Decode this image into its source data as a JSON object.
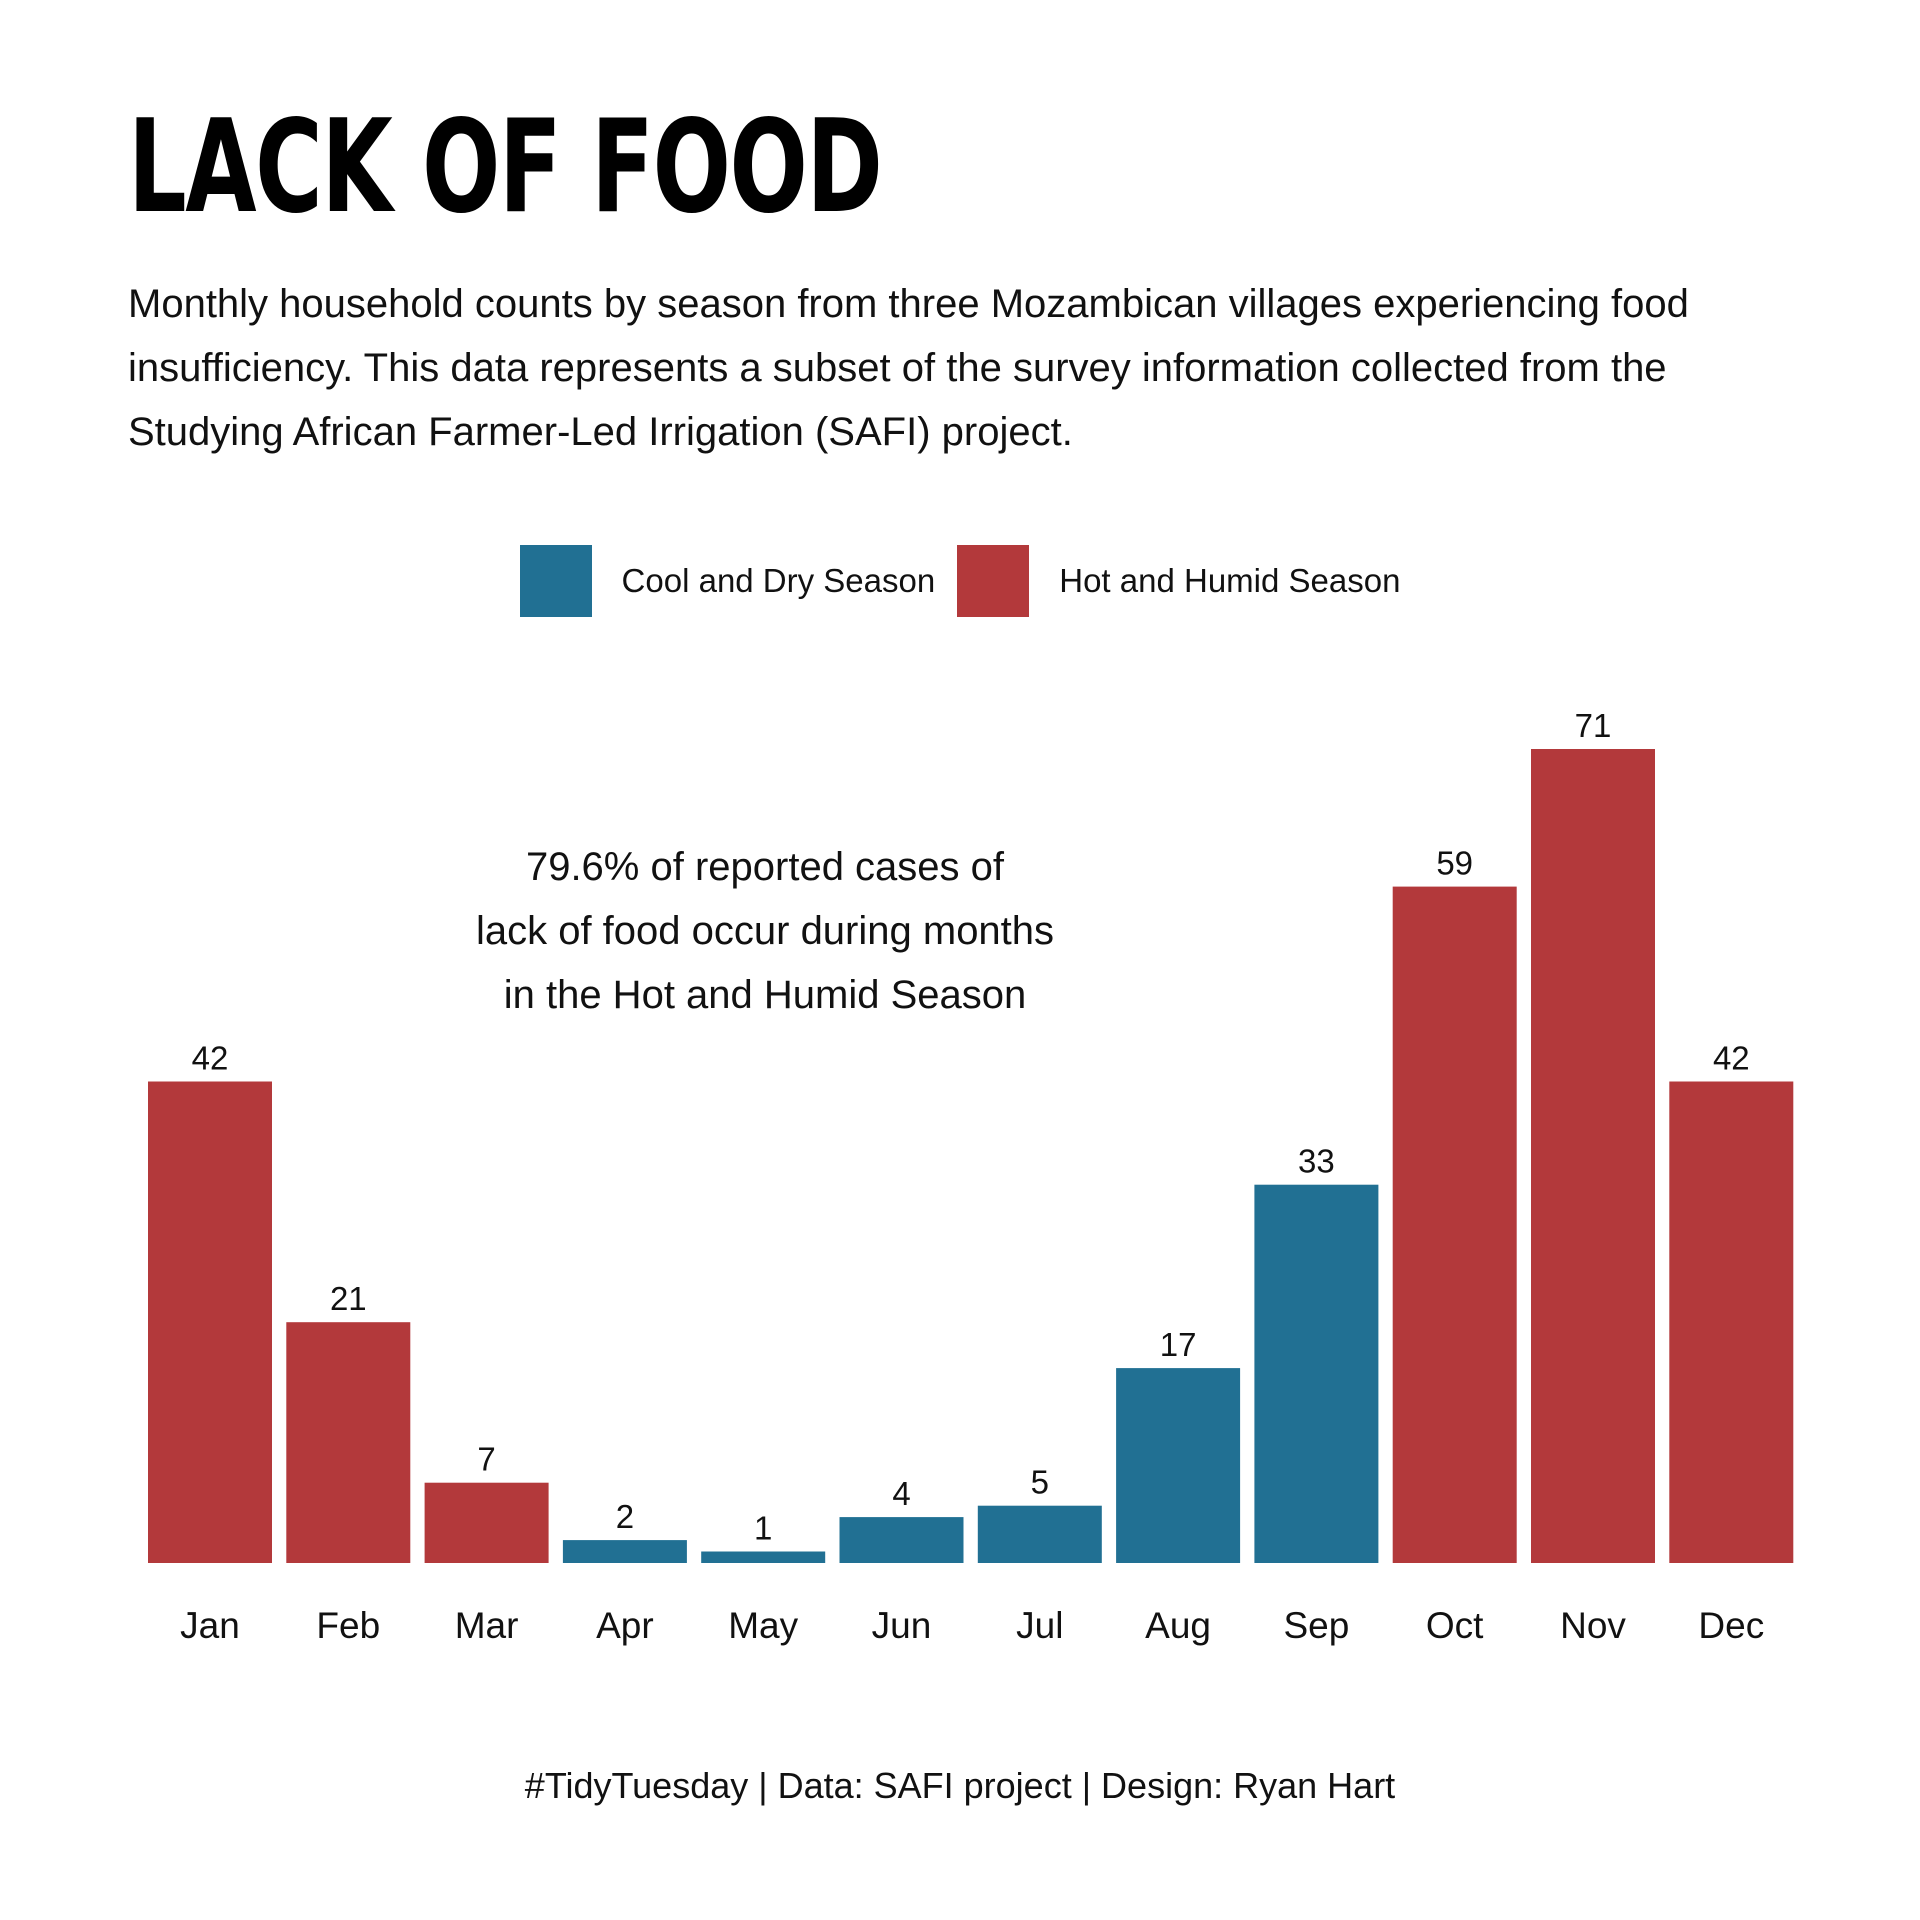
{
  "title": "LACK OF FOOD",
  "subtitle": "Monthly household counts by season from three Mozambican villages experiencing food insufficiency. This data represents a subset of the survey information collected from the Studying African Farmer-Led Irrigation (SAFI) project.",
  "annotation": {
    "line1": "79.6% of reported cases of",
    "line2": "lack of food occur during months",
    "line3": "in the Hot and Humid Season"
  },
  "caption": "#TidyTuesday | Data: SAFI project | Design: Ryan Hart",
  "legend": [
    {
      "label": "Cool and Dry Season",
      "color": "#217093"
    },
    {
      "label": "Hot and Humid Season",
      "color": "#b3393b"
    }
  ],
  "chart_data": {
    "type": "bar",
    "categories": [
      "Jan",
      "Feb",
      "Mar",
      "Apr",
      "May",
      "Jun",
      "Jul",
      "Aug",
      "Sep",
      "Oct",
      "Nov",
      "Dec"
    ],
    "values": [
      42,
      21,
      7,
      2,
      1,
      4,
      5,
      17,
      33,
      59,
      71,
      42
    ],
    "season": [
      "Hot and Humid Season",
      "Hot and Humid Season",
      "Hot and Humid Season",
      "Cool and Dry Season",
      "Cool and Dry Season",
      "Cool and Dry Season",
      "Cool and Dry Season",
      "Cool and Dry Season",
      "Cool and Dry Season",
      "Hot and Humid Season",
      "Hot and Humid Season",
      "Hot and Humid Season"
    ],
    "colors": {
      "Cool and Dry Season": "#217093",
      "Hot and Humid Season": "#b3393b"
    },
    "data_labels": true,
    "ylim": [
      0,
      71
    ],
    "grid": false,
    "legend_position": "top-center"
  }
}
